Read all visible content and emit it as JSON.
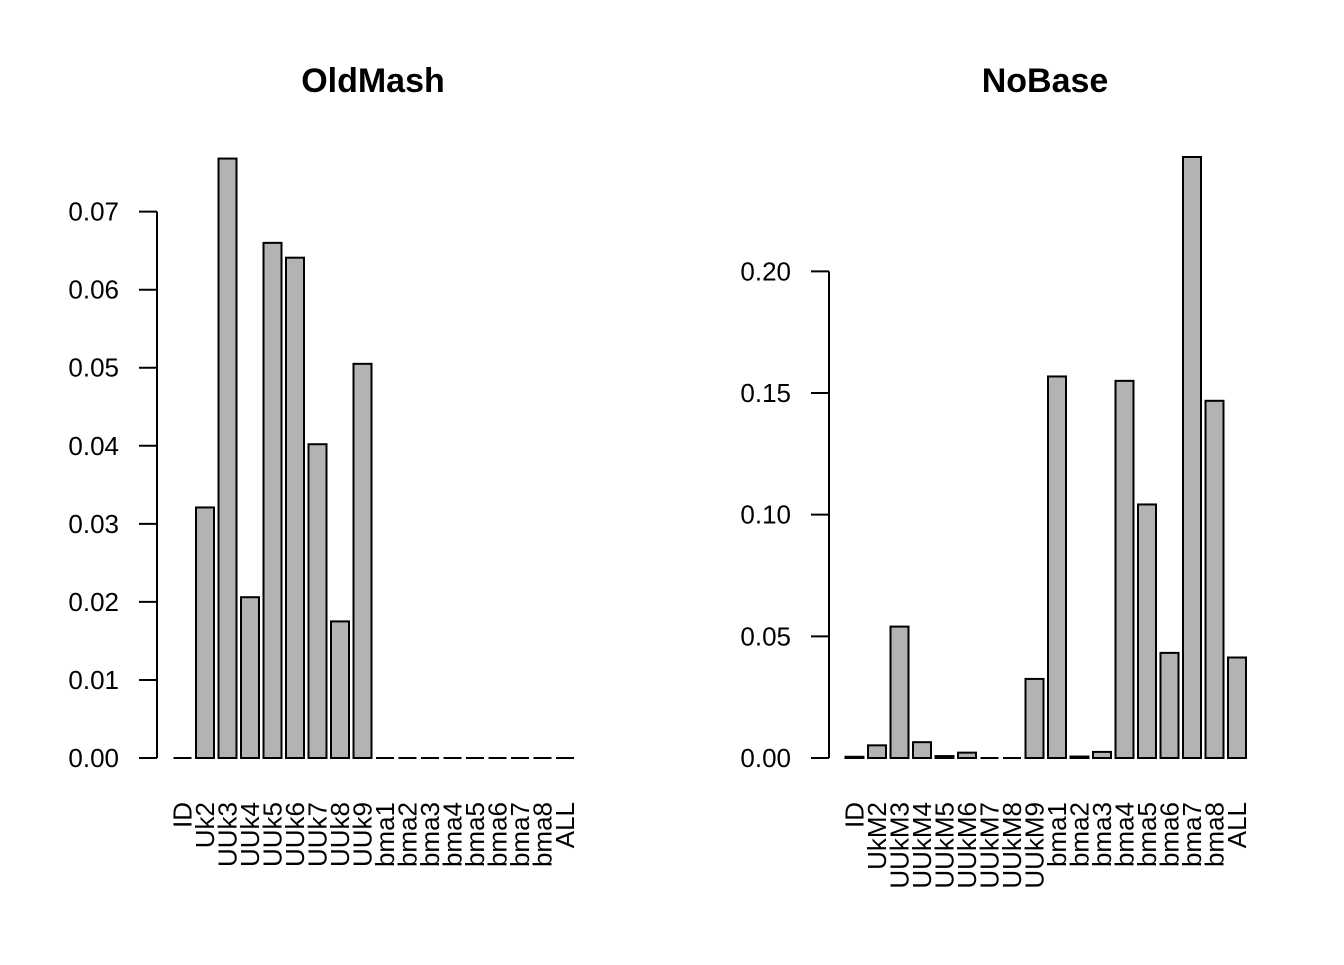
{
  "chart_data": [
    {
      "type": "bar",
      "title": "OldMash",
      "xlabel": "",
      "ylabel": "",
      "ylim": [
        0,
        0.077
      ],
      "yticks": [
        "0.00",
        "0.01",
        "0.02",
        "0.03",
        "0.04",
        "0.05",
        "0.06",
        "0.07"
      ],
      "bar_color": "#b3b3b3",
      "categories": [
        "ID",
        "Uk2",
        "UUk3",
        "UUk4",
        "UUk5",
        "UUk6",
        "UUk7",
        "UUk8",
        "UUk9",
        "bma1",
        "bma2",
        "bma3",
        "bma4",
        "bma5",
        "bma6",
        "bma7",
        "bma8",
        "ALL"
      ],
      "values": [
        0.0,
        0.0321,
        0.0768,
        0.0206,
        0.066,
        0.0641,
        0.0402,
        0.0175,
        0.0505,
        0,
        0,
        0,
        0,
        0,
        0,
        0,
        0,
        0
      ]
    },
    {
      "type": "bar",
      "title": "NoBase",
      "xlabel": "",
      "ylabel": "",
      "ylim": [
        0,
        0.247
      ],
      "yticks": [
        "0.00",
        "0.05",
        "0.10",
        "0.15",
        "0.20"
      ],
      "bar_color": "#b3b3b3",
      "categories": [
        "ID",
        "UkM2",
        "UUkM3",
        "UUkM4",
        "UUkM5",
        "UUkM6",
        "UUkM7",
        "UUkM8",
        "UUkM9",
        "bma1",
        "bma2",
        "bma3",
        "bma4",
        "bma5",
        "bma6",
        "bma7",
        "bma8",
        "ALL"
      ],
      "values": [
        0.0005,
        0.0052,
        0.054,
        0.0065,
        0.0008,
        0.0022,
        0.0,
        0.0,
        0.0325,
        0.1568,
        0.0006,
        0.0025,
        0.155,
        0.1042,
        0.0432,
        0.247,
        0.1468,
        0.0413
      ]
    }
  ]
}
